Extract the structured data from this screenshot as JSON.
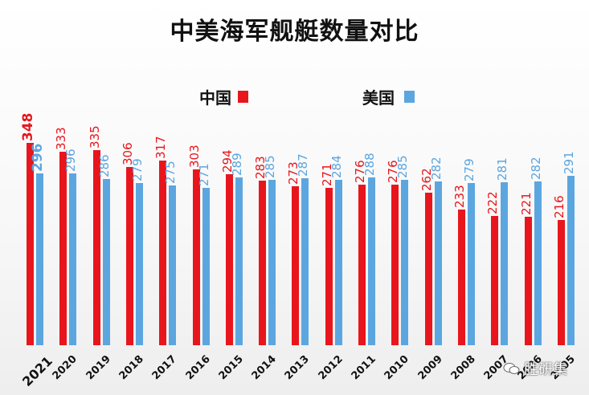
{
  "title": "中美海军舰艇数量对比",
  "legend": [
    {
      "label": "中国",
      "color": "#e8161c"
    },
    {
      "label": "美国",
      "color": "#5ca6e0"
    }
  ],
  "watermark": "胜研集",
  "chart_data": {
    "type": "bar",
    "title": "中美海军舰艇数量对比",
    "xlabel": "",
    "ylabel": "",
    "categories": [
      "2021",
      "2020",
      "2019",
      "2018",
      "2017",
      "2016",
      "2015",
      "2014",
      "2013",
      "2012",
      "2011",
      "2010",
      "2009",
      "2008",
      "2007",
      "2006",
      "2005"
    ],
    "series": [
      {
        "name": "中国",
        "color": "#e8161c",
        "values": [
          348,
          333,
          335,
          306,
          317,
          303,
          294,
          283,
          273,
          271,
          276,
          276,
          262,
          233,
          222,
          221,
          216
        ]
      },
      {
        "name": "美国",
        "color": "#5ca6e0",
        "values": [
          296,
          296,
          286,
          279,
          275,
          271,
          289,
          285,
          287,
          284,
          288,
          285,
          282,
          279,
          281,
          282,
          291
        ]
      }
    ],
    "ylim": [
      0,
      348
    ],
    "grid": false,
    "legend_position": "top",
    "data_labels": true
  }
}
